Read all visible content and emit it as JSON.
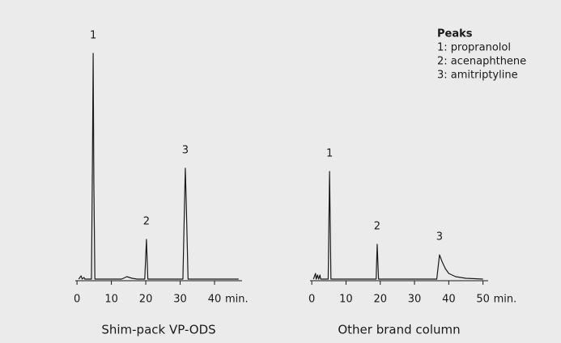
{
  "chart_data": [
    {
      "type": "line",
      "xlabel": "Shim-pack VP-ODS",
      "xunit": "min.",
      "xlim": [
        -0.5,
        48
      ],
      "xticks": [
        0,
        10,
        20,
        30,
        40
      ],
      "ylim": [
        0,
        300
      ],
      "x": [
        0.5,
        1.2,
        1.5,
        2.0,
        2.3,
        4.2,
        4.5,
        4.7,
        4.9,
        5.2,
        11,
        13,
        14.5,
        16,
        17.5,
        19.7,
        20.2,
        20.6,
        30.8,
        31.3,
        31.5,
        31.8,
        32.3,
        47
      ],
      "series": [
        {
          "color": "#1a1a1a",
          "values": [
            0,
            4,
            0,
            2,
            0,
            0,
            150,
            279,
            120,
            0,
            0,
            0,
            3,
            1,
            0,
            0,
            49,
            0,
            0,
            100,
            137,
            90,
            0,
            0
          ]
        }
      ],
      "annotations": [
        {
          "text": "1",
          "x": 4.7,
          "y": 279
        },
        {
          "text": "2",
          "x": 20.2,
          "y": 49
        },
        {
          "text": "3",
          "x": 31.5,
          "y": 137
        }
      ]
    },
    {
      "type": "line",
      "xlabel": "Other brand column",
      "xunit": "min.",
      "xlim": [
        -0.5,
        51.5
      ],
      "xticks": [
        0,
        10,
        20,
        30,
        40,
        50
      ],
      "ylim": [
        0,
        300
      ],
      "x": [
        0.5,
        1.1,
        1.3,
        1.7,
        2.0,
        2.4,
        2.6,
        4.8,
        5.2,
        5.6,
        18.8,
        19.1,
        19.5,
        36.5,
        37.3,
        38,
        39,
        40,
        42,
        45,
        50
      ],
      "series": [
        {
          "color": "#1a1a1a",
          "values": [
            0,
            7,
            0,
            5,
            0,
            5,
            0,
            0,
            133,
            0,
            0,
            43,
            0,
            0,
            30,
            22,
            13,
            7,
            3,
            1,
            0
          ]
        }
      ],
      "annotations": [
        {
          "text": "1",
          "x": 5.2,
          "y": 133
        },
        {
          "text": "2",
          "x": 19.1,
          "y": 43
        },
        {
          "text": "3",
          "x": 37.3,
          "y": 30
        }
      ]
    }
  ],
  "peaks": {
    "title": "Peaks",
    "items": [
      "1: propranolol",
      "2: acenaphthene",
      "3: amitriptyline"
    ]
  }
}
